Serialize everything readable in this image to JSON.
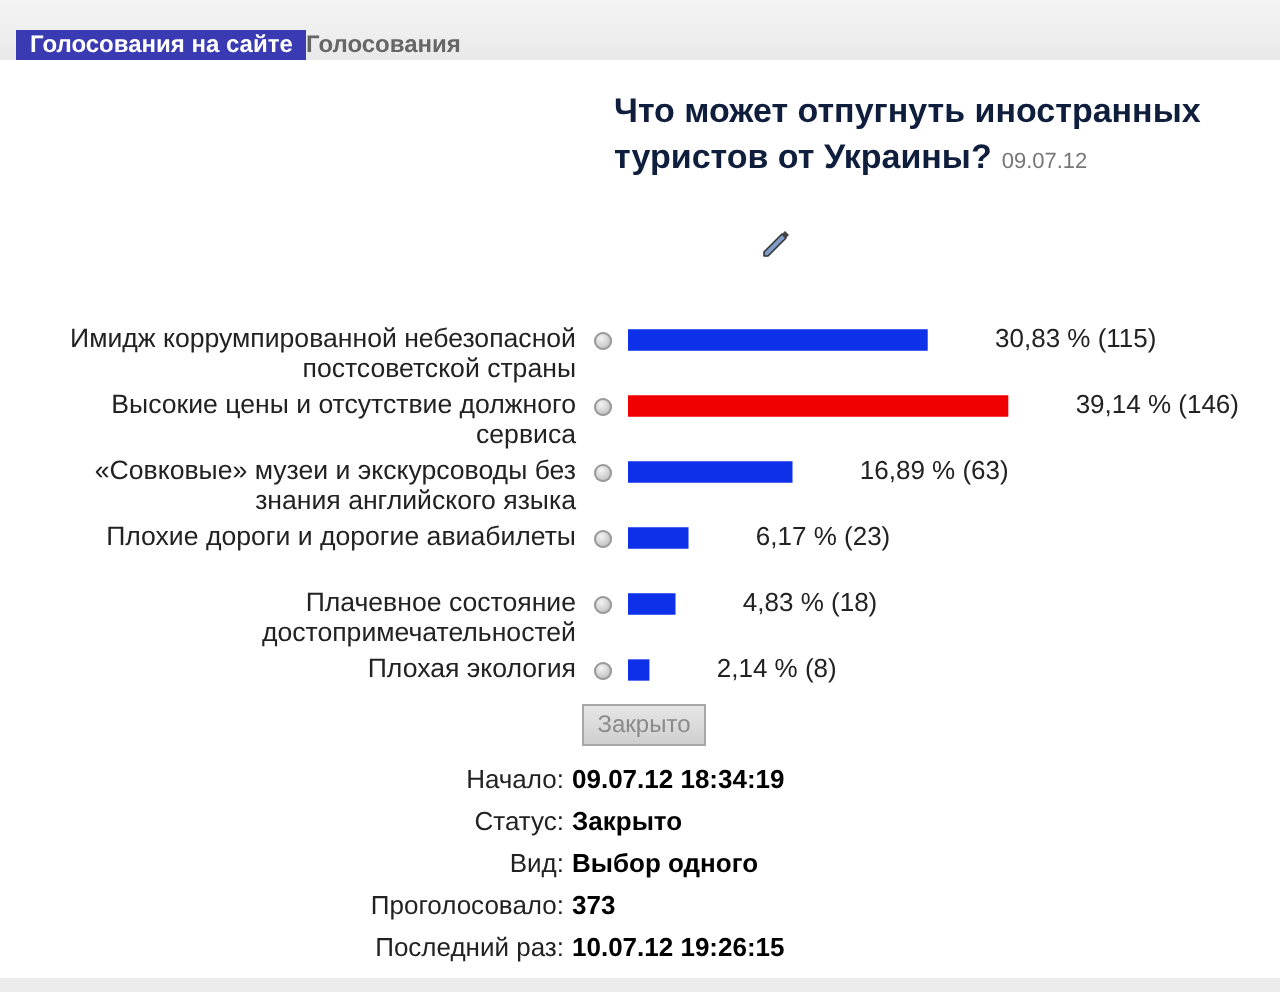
{
  "chart_data": {
    "type": "bar",
    "orientation": "horizontal",
    "title": "Что может отпугнуть иностранных туристов от Украины?",
    "subtitle": "09.07.12",
    "categories": [
      "Имидж коррумпированной небезопасной постсоветской страны",
      "Высокие цены и отсутствие должного сервиса",
      "«Совковые» музеи и экскурсоводы без знания английского языка",
      "Плохие дороги и дорогие авиабилеты",
      "Плачевное состояние достопримечательностей",
      "Плохая экология"
    ],
    "values": [
      30.83,
      39.14,
      16.89,
      6.17,
      4.83,
      2.14
    ],
    "colors": [
      "#0d30e8",
      "#f00000",
      "#0d30e8",
      "#0d30e8",
      "#0d30e8",
      "#0d30e8"
    ],
    "value_labels": [
      "30,83 % (115)",
      "39,14 % (146)",
      "16,89 % (63)",
      "6,17 % (23)",
      "4,83 % (18)",
      "2,14 % (8)"
    ],
    "tick_labels": "y",
    "annotations": [
      "Голосования на сайте",
      "Голосования",
      "Закрыто",
      "Начало: 09.07.12 18:34:19",
      "Статус: Закрыто",
      "Вид: Выбор одного",
      "Проголосовало: 373",
      "Последний раз: 10.07.12 19:26:15"
    ]
  }
}
